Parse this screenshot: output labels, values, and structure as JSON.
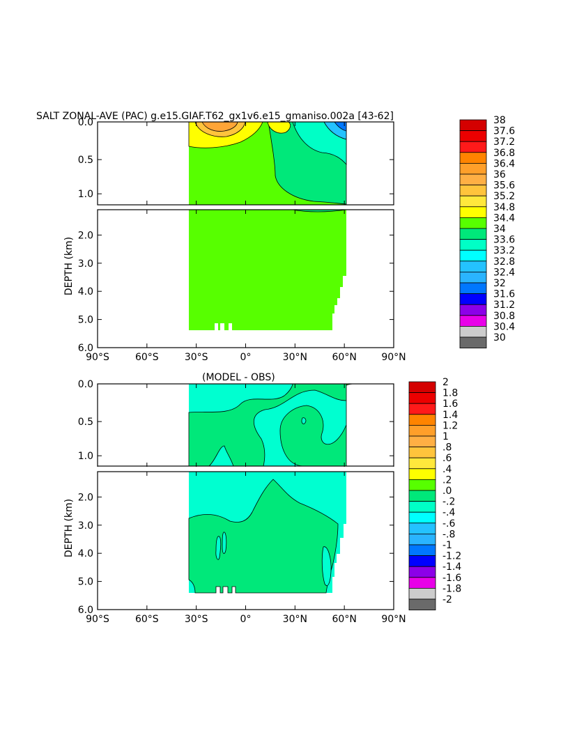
{
  "chart_data": [
    {
      "type": "heatmap",
      "title": "SALT ZONAL-AVE (PAC) g.e15.GIAF.T62_gx1v6.e15_gmaniso.002a [43-62]",
      "ylabel": "DEPTH (km)",
      "x_ticks": [
        "90°S",
        "60°S",
        "30°S",
        "0°",
        "30°N",
        "60°N",
        "90°N"
      ],
      "xlim": [
        -90,
        90
      ],
      "y_ticks_upper": [
        "0.0",
        "0.5",
        "1.0"
      ],
      "y_ticks_lower": [
        "2.0",
        "3.0",
        "4.0",
        "5.0",
        "6.0"
      ],
      "ylim": [
        0,
        6.0
      ],
      "data_extent": {
        "lat_min": -34,
        "lat_max": 62,
        "depth_max": 5.4
      },
      "regions": [
        {
          "value_range": "34.4-34.8",
          "color": "#57ff00",
          "description": "dominant field"
        },
        {
          "value_range": "34.8-35.2",
          "color": "#ffff00",
          "description": "surface subtropical south"
        },
        {
          "value_range": "35.2-35.6",
          "color": "#ffc43c",
          "description": "subtropical core"
        },
        {
          "value_range": "35.6-36.0",
          "color": "#ffa537",
          "description": "subtropical maximum"
        },
        {
          "value_range": "34.0-34.4",
          "color": "#00e87a",
          "description": "north intermediate"
        },
        {
          "value_range": "33.6-34.0",
          "color": "#00ffc6",
          "description": "north surface"
        },
        {
          "value_range": "32.8-33.2",
          "color": "#24c2ff",
          "description": "subpolar north surface"
        }
      ],
      "colorbar": {
        "labels": [
          "38",
          "37.6",
          "37.2",
          "36.8",
          "36.4",
          "36",
          "35.6",
          "35.2",
          "34.8",
          "34.4",
          "34",
          "33.6",
          "33.2",
          "32.8",
          "32.4",
          "32",
          "31.6",
          "31.2",
          "30.8",
          "30.4",
          "30"
        ],
        "colors": [
          "#d40000",
          "#ec0000",
          "#ff1a1a",
          "#ff8400",
          "#ff9f2a",
          "#ffaf44",
          "#ffc43c",
          "#ffe83c",
          "#ffff00",
          "#57ff00",
          "#00e87a",
          "#00ffc6",
          "#00ffff",
          "#24c2ff",
          "#2ab4ff",
          "#0077ff",
          "#0000ff",
          "#8c00e8",
          "#e800e8",
          "#cccccc"
        ]
      }
    },
    {
      "type": "heatmap",
      "title": "(MODEL - OBS)",
      "ylabel": "DEPTH (km)",
      "x_ticks": [
        "90°S",
        "60°S",
        "30°S",
        "0°",
        "30°N",
        "60°N",
        "90°N"
      ],
      "xlim": [
        -90,
        90
      ],
      "y_ticks_upper": [
        "0.0",
        "0.5",
        "1.0"
      ],
      "y_ticks_lower": [
        "2.0",
        "3.0",
        "4.0",
        "5.0",
        "6.0"
      ],
      "ylim": [
        0,
        6.0
      ],
      "data_extent": {
        "lat_min": -34,
        "lat_max": 62,
        "depth_max": 5.4
      },
      "regions": [
        {
          "value_range": "-0.2-0.0",
          "color": "#00ffd0",
          "description": "background"
        },
        {
          "value_range": "0.0-0.2",
          "color": "#00e87a",
          "description": "positive anomaly patches"
        },
        {
          "value_range": "0.2-0.4",
          "color": "#57ff00",
          "description": "small patch near 60N surface"
        }
      ],
      "colorbar": {
        "labels": [
          "2",
          "1.8",
          "1.6",
          "1.4",
          "1.2",
          "1",
          ".8",
          ".6",
          ".4",
          ".2",
          ".0",
          "-.2",
          "-.4",
          "-.6",
          "-.8",
          "-1",
          "-1.2",
          "-1.4",
          "-1.6",
          "-1.8",
          "-2"
        ],
        "colors": [
          "#d40000",
          "#ec0000",
          "#ff1a1a",
          "#ff8400",
          "#ff9f2a",
          "#ffaf44",
          "#ffc43c",
          "#ffe83c",
          "#ffff00",
          "#57ff00",
          "#00e87a",
          "#00ffc6",
          "#00ffff",
          "#24c2ff",
          "#2ab4ff",
          "#0077ff",
          "#0000ff",
          "#8c00e8",
          "#e800e8",
          "#cccccc"
        ]
      }
    }
  ]
}
